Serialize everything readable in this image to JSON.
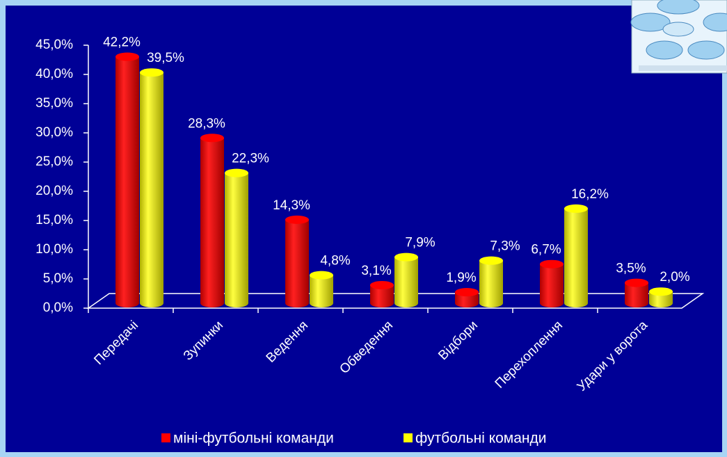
{
  "chart_data": {
    "type": "bar3d",
    "categories": [
      "Передачі",
      "Зупинки",
      "Ведення",
      "Обведення",
      "Відбори",
      "Перехоплення",
      "Удари у ворота"
    ],
    "series": [
      {
        "name": "міні-футбольні команди",
        "color": "#ff0000",
        "values": [
          42.2,
          28.3,
          14.3,
          3.1,
          1.9,
          6.7,
          3.5
        ],
        "value_labels": [
          "42,2%",
          "28,3%",
          "14,3%",
          "3,1%",
          "1,9%",
          "6,7%",
          "3,5%"
        ]
      },
      {
        "name": "футбольні команди",
        "color": "#ffff00",
        "values": [
          39.5,
          22.3,
          4.8,
          7.9,
          7.3,
          16.2,
          2.0
        ],
        "value_labels": [
          "39,5%",
          "22,3%",
          "4,8%",
          "7,9%",
          "7,3%",
          "16,2%",
          "2,0%"
        ]
      }
    ],
    "ylim": [
      0,
      45
    ],
    "yticks": [
      {
        "value": 0,
        "label": "0,0%"
      },
      {
        "value": 5,
        "label": "5,0%"
      },
      {
        "value": 10,
        "label": "10,0%"
      },
      {
        "value": 15,
        "label": "15,0%"
      },
      {
        "value": 20,
        "label": "20,0%"
      },
      {
        "value": 25,
        "label": "25,0%"
      },
      {
        "value": 30,
        "label": "30,0%"
      },
      {
        "value": 35,
        "label": "35,0%"
      },
      {
        "value": 40,
        "label": "40,0%"
      },
      {
        "value": 45,
        "label": "45,0%"
      }
    ],
    "legend": "bottom"
  }
}
